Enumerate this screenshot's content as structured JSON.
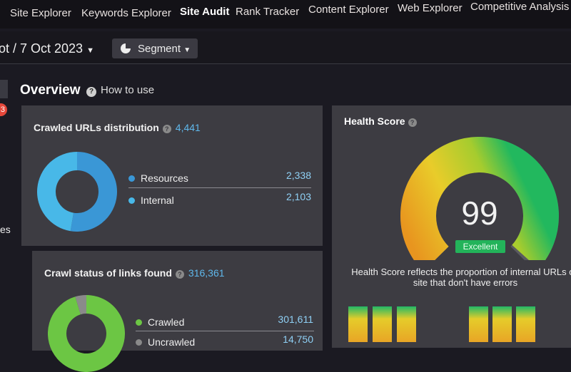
{
  "nav": {
    "items": [
      "Site Explorer",
      "Keywords Explorer",
      "Site Audit",
      "Rank Tracker",
      "Content Explorer",
      "Web Explorer",
      "Competitive Analysis"
    ],
    "active": "Site Audit"
  },
  "toolbar": {
    "crawl_date": "ot / 7 Oct 2023",
    "segment_label": "Segment"
  },
  "sidebar": {
    "badge": "3",
    "partial_text": "es"
  },
  "overview": {
    "title": "Overview",
    "how_to_use": "How to use"
  },
  "crawled_urls": {
    "title": "Crawled URLs distribution",
    "total": "4,441",
    "items": [
      {
        "label": "Resources",
        "value": "2,338",
        "count": 2338,
        "color": "#3a97d6"
      },
      {
        "label": "Internal",
        "value": "2,103",
        "count": 2103,
        "color": "#48b8e8"
      }
    ]
  },
  "crawl_status": {
    "title": "Crawl status of links found",
    "total": "316,361",
    "items": [
      {
        "label": "Crawled",
        "value": "301,611",
        "count": 301611,
        "color": "#6cc644"
      },
      {
        "label": "Uncrawled",
        "value": "14,750",
        "count": 14750,
        "color": "#8a8a8a"
      }
    ]
  },
  "health": {
    "title": "Health Score",
    "score": "99",
    "score_value": 99,
    "rating": "Excellent",
    "description": "Health Score reflects the proportion of internal URLs on site that don't have errors"
  }
}
